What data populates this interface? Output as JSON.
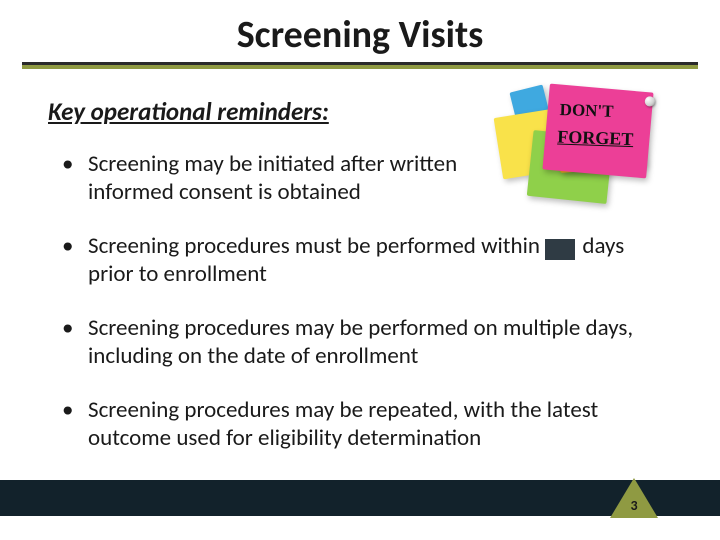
{
  "title": "Screening Visits",
  "subheading": "Key operational reminders:",
  "bullets": [
    "Screening may be initiated after written informed consent is obtained",
    "Screening procedures must be performed within days prior to enrollment",
    "Screening procedures may be performed on multiple days, including on the date of enrollment",
    "Screening procedures may be repeated, with the latest outcome used for eligibility determination"
  ],
  "sticky": {
    "line1": "DON'T",
    "line2": "FORGET"
  },
  "page_number": "3",
  "colors": {
    "olive": "#8f9a42",
    "footer": "#12222b",
    "redact": "#2f3b44",
    "pink": "#ec3f97",
    "green": "#8fd04a",
    "yellow": "#f9e24a",
    "orange": "#f7a823",
    "blue": "#3fa9e0"
  }
}
